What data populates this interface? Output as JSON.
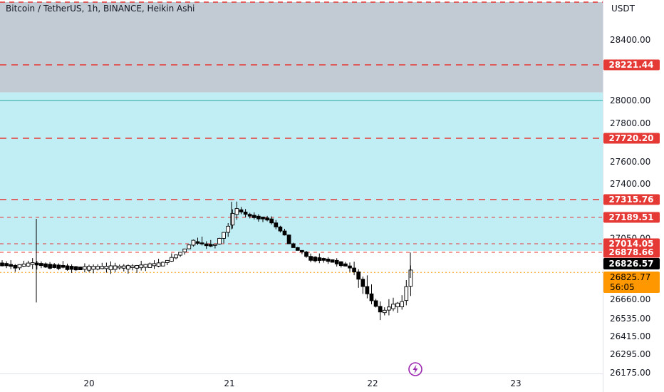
{
  "header": {
    "title": "Bitcoin / TetherUS, 1h, BINANCE, Heikin Ashi",
    "axis_unit": "USDT"
  },
  "colors": {
    "supply_zone": "#c2cad3",
    "demand_zone": "#c1eef5",
    "level_line": "#e53935",
    "price_badge": "#000000",
    "countdown_badge": "#ff9800",
    "candle_up": "#ffffff",
    "candle_down": "#000000",
    "indicator_icon": "#9c27b0"
  },
  "icons": {
    "indicator": "lightning-icon"
  },
  "chart_data": {
    "type": "candlestick",
    "chart_style": "Heikin Ashi",
    "symbol": "Bitcoin / TetherUS",
    "interval": "1h",
    "exchange": "BINANCE",
    "y_range": [
      26175,
      28550
    ],
    "y_scale": "piecewise",
    "y_ticks": [
      "28400.00",
      "28000.00",
      "27800.00",
      "27600.00",
      "27400.00",
      "27050.00",
      "26660.00",
      "26535.00",
      "26415.00",
      "26295.00",
      "26175.00"
    ],
    "x_ticks": [
      "20",
      "21",
      "22",
      "23"
    ],
    "grid": false,
    "zones": [
      {
        "name": "supply",
        "from": 28050,
        "to": 28550
      },
      {
        "name": "demand",
        "from": 26900,
        "to": 28050
      }
    ],
    "horizontal_lines": [
      {
        "price": 28221.44,
        "label": "28221.44"
      },
      {
        "price": 27720.2,
        "label": "27720.20"
      },
      {
        "price": 27315.76,
        "label": "27315.76"
      },
      {
        "price": 27189.51,
        "label": "27189.51"
      },
      {
        "price": 27014.05,
        "label": "27014.05"
      },
      {
        "price": 26878.66,
        "label": "26878.66"
      }
    ],
    "last_price": {
      "value": 26826.57,
      "label": "26826.57"
    },
    "countdown": {
      "value": 26825.77,
      "label": "26825.77",
      "timer": "56:05"
    },
    "candles_summary": {
      "start_level": 26820,
      "first_peak": 27080,
      "peak_day": "21",
      "peak_high": 27300,
      "low_after_day_22": 26555,
      "last_close": 26826.57
    }
  }
}
